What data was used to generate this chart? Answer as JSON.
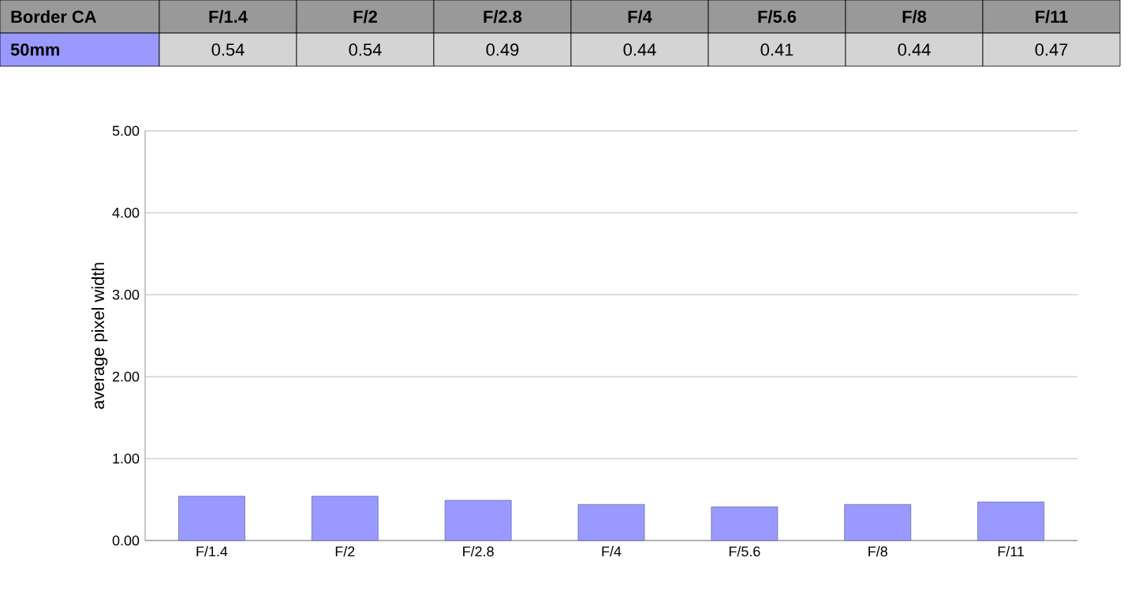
{
  "chart_data": {
    "type": "bar",
    "title": "Border CA",
    "ylabel": "average pixel width",
    "categories": [
      "F/1.4",
      "F/2",
      "F/2.8",
      "F/4",
      "F/5.6",
      "F/8",
      "F/11"
    ],
    "series": [
      {
        "name": "50mm",
        "color": "#9999ff",
        "values": [
          0.54,
          0.54,
          0.49,
          0.44,
          0.41,
          0.44,
          0.47
        ],
        "value_labels": [
          "0.54",
          "0.54",
          "0.49",
          "0.44",
          "0.41",
          "0.44",
          "0.47"
        ]
      }
    ],
    "ylim": [
      0,
      5
    ],
    "yticks": [
      {
        "value": 0,
        "label": "0.00"
      },
      {
        "value": 1,
        "label": "1.00"
      },
      {
        "value": 2,
        "label": "2.00"
      },
      {
        "value": 3,
        "label": "3.00"
      },
      {
        "value": 4,
        "label": "4.00"
      },
      {
        "value": 5,
        "label": "5.00"
      }
    ],
    "grid": "y",
    "legend": "top left"
  }
}
